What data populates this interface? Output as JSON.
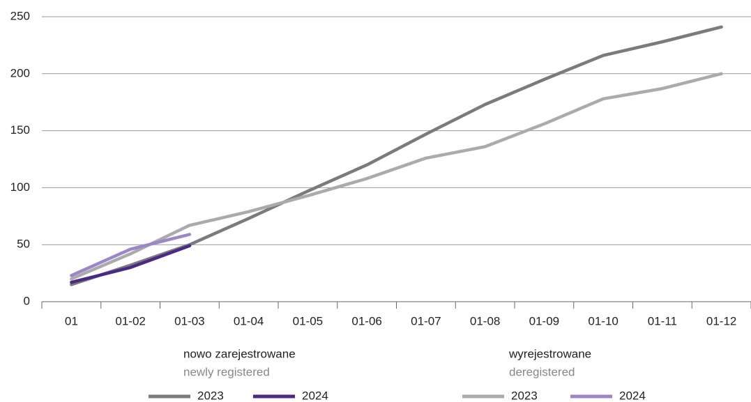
{
  "chart_data": {
    "type": "line",
    "categories": [
      "01",
      "01-02",
      "01-03",
      "01-04",
      "01-05",
      "01-06",
      "01-07",
      "01-08",
      "01-09",
      "01-10",
      "01-11",
      "01-12"
    ],
    "ylim": [
      0,
      250
    ],
    "yticks": [
      0,
      50,
      100,
      150,
      200,
      250
    ],
    "grid": true,
    "groups": [
      {
        "title": "nowo zarejestrowane",
        "subtitle": "newly registered",
        "series": [
          {
            "name": "2023",
            "color": "#7b7b7d",
            "values": [
              15,
              32,
              50,
              73,
              97,
              120,
              147,
              173,
              195,
              216,
              228,
              241
            ]
          },
          {
            "name": "2024",
            "color": "#4b2a86",
            "values": [
              17,
              30,
              49,
              null,
              null,
              null,
              null,
              null,
              null,
              null,
              null,
              null
            ]
          }
        ]
      },
      {
        "title": "wyrejestrowane",
        "subtitle": "deregistered",
        "series": [
          {
            "name": "2023",
            "color": "#ababad",
            "values": [
              20,
              42,
              67,
              79,
              93,
              108,
              126,
              136,
              156,
              178,
              187,
              200
            ]
          },
          {
            "name": "2024",
            "color": "#9b87c8",
            "values": [
              23,
              46,
              59,
              null,
              null,
              null,
              null,
              null,
              null,
              null,
              null,
              null
            ]
          }
        ]
      }
    ]
  }
}
